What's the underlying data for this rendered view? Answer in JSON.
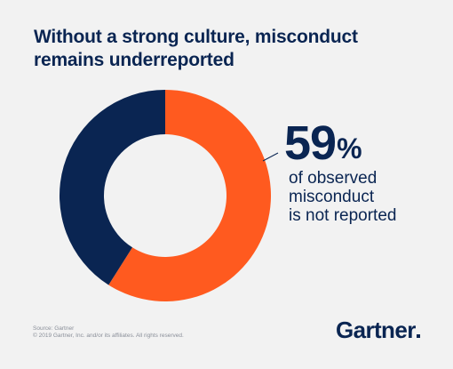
{
  "title": "Without a strong culture, misconduct remains underreported",
  "chart_data": {
    "type": "pie",
    "variant": "donut",
    "slices": [
      {
        "label": "not reported",
        "value": 59,
        "color": "#ff5a1f"
      },
      {
        "label": "reported",
        "value": 41,
        "color": "#0a2552"
      }
    ]
  },
  "callout": {
    "value": "59",
    "unit": "%",
    "lines": [
      "of observed",
      "misconduct",
      "is not reported"
    ]
  },
  "footer": {
    "source": "Source: Gartner",
    "copyright": "© 2019 Gartner, Inc. and/or its affiliates. All rights reserved.",
    "logo": "Gartner"
  },
  "colors": {
    "navy": "#0a2552",
    "orange": "#ff5a1f",
    "background": "#f2f2f2"
  }
}
